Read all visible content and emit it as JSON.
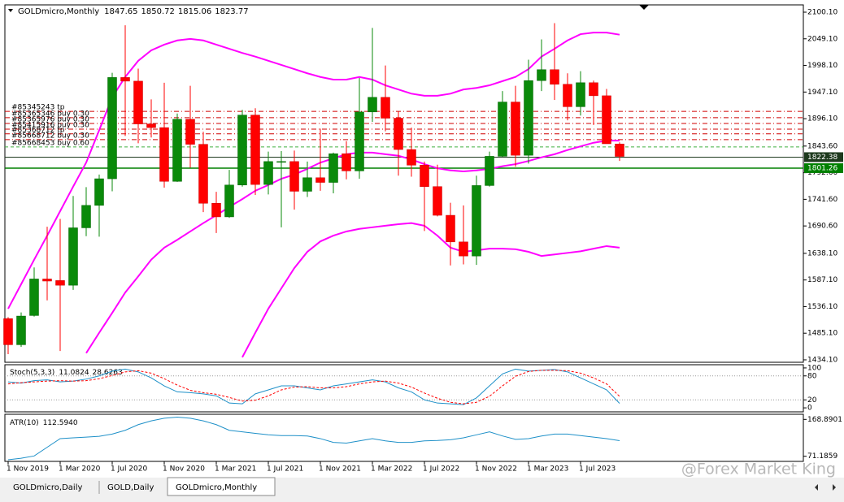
{
  "chart_data": [
    {
      "type": "candlestick",
      "symbol": "GOLDmicro,Monthly",
      "ohlc": [
        1847.65,
        1850.72,
        1815.06,
        1823.77
      ],
      "categories": [
        "1 Nov 2019",
        null,
        null,
        null,
        "1 Mar 2020",
        null,
        null,
        null,
        "1 Jul 2020",
        null,
        null,
        null,
        "1 Nov 2020",
        null,
        null,
        null,
        "1 Mar 2021",
        null,
        null,
        null,
        "1 Jul 2021",
        null,
        null,
        null,
        "1 Nov 2021",
        null,
        null,
        null,
        "1 Mar 2022",
        null,
        null,
        null,
        "1 Jul 2022",
        null,
        null,
        null,
        "1 Nov 2022",
        null,
        null,
        null,
        "1 Mar 2023",
        null,
        null,
        null,
        "1 Jul 2023",
        null,
        null,
        null
      ],
      "open": [
        1513,
        1463,
        1519,
        1589,
        1586,
        1577,
        1687,
        1730,
        1781,
        1975,
        1968,
        1886,
        1879,
        1776,
        1895,
        1847,
        1734,
        1708,
        1769,
        1903,
        1770,
        1814,
        1814,
        1757,
        1783,
        1774,
        1829,
        1796,
        1909,
        1937,
        1897,
        1837,
        1807,
        1766,
        1711,
        1660,
        1633,
        1768,
        1824,
        1928,
        1826,
        1969,
        1990,
        1962,
        1919,
        1965,
        1940,
        1847.65
      ],
      "high": [
        1516,
        1525,
        1611,
        1689,
        1704,
        1748,
        1765,
        1789,
        1984,
        2075,
        1992,
        1933,
        1965,
        1906,
        1959,
        1871,
        1756,
        1798,
        1913,
        1916,
        1833,
        1834,
        1835,
        1814,
        1877,
        1831,
        1853,
        1974,
        2070,
        1998,
        1910,
        1879,
        1814,
        1808,
        1735,
        1730,
        1787,
        1833,
        1949,
        1959,
        2009,
        2048,
        2079,
        1983,
        1987,
        1969,
        1953,
        1850.72
      ],
      "low": [
        1445,
        1459,
        1517,
        1548,
        1451,
        1568,
        1671,
        1670,
        1757,
        1863,
        1849,
        1860,
        1764,
        1775,
        1802,
        1717,
        1677,
        1706,
        1766,
        1750,
        1751,
        1688,
        1722,
        1746,
        1758,
        1753,
        1780,
        1781,
        1890,
        1872,
        1787,
        1785,
        1681,
        1709,
        1615,
        1617,
        1616,
        1766,
        1823,
        1804,
        1810,
        1949,
        1932,
        1893,
        1902,
        1884,
        1848,
        1815.06
      ],
      "close": [
        1463,
        1518,
        1589,
        1585,
        1577,
        1687,
        1730,
        1781,
        1975,
        1968,
        1886,
        1879,
        1776,
        1895,
        1847,
        1734,
        1708,
        1769,
        1903,
        1770,
        1814,
        1814,
        1757,
        1783,
        1774,
        1829,
        1796,
        1909,
        1937,
        1897,
        1837,
        1807,
        1766,
        1711,
        1660,
        1633,
        1768,
        1824,
        1928,
        1826,
        1969,
        1990,
        1962,
        1919,
        1965,
        1940,
        1848,
        1823.77
      ],
      "up_color": "#0a8a0a",
      "down_color": "#ff0000",
      "bands": {
        "color": "#ff00ff",
        "upper": [
          1532,
          1579,
          1626,
          1672,
          1719,
          1766,
          1812,
          1874,
          1937,
          1976,
          2007,
          2027,
          2038,
          2046,
          2049,
          2046,
          2038,
          2030,
          2022,
          2015,
          2007,
          1999,
          1991,
          1983,
          1976,
          1971,
          1971,
          1976,
          1971,
          1960,
          1952,
          1944,
          1940,
          1940,
          1944,
          1952,
          1955,
          1960,
          1968,
          1976,
          1991,
          2015,
          2030,
          2046,
          2058,
          2061,
          2061,
          2057
        ],
        "middle": [
          null,
          null,
          null,
          null,
          null,
          null,
          1447,
          1486,
          1524,
          1563,
          1594,
          1626,
          1649,
          1664,
          1680,
          1696,
          1711,
          1727,
          1742,
          1758,
          1769,
          1781,
          1789,
          1800,
          1812,
          1820,
          1828,
          1831,
          1831,
          1828,
          1825,
          1818,
          1809,
          1801,
          1797,
          1795,
          1797,
          1800,
          1805,
          1809,
          1815,
          1822,
          1828,
          1836,
          1843,
          1850,
          1854,
          1854
        ],
        "lower": [
          null,
          null,
          null,
          null,
          null,
          null,
          null,
          null,
          null,
          null,
          null,
          null,
          null,
          null,
          null,
          null,
          null,
          null,
          1439,
          1486,
          1532,
          1571,
          1610,
          1641,
          1661,
          1672,
          1680,
          1685,
          1688,
          1691,
          1694,
          1696,
          1691,
          1672,
          1649,
          1641,
          1644,
          1647,
          1647,
          1646,
          1641,
          1633,
          1636,
          1639,
          1642,
          1647,
          1652,
          1649
        ]
      },
      "orders": [
        {
          "label": "#85345243 tp",
          "price": 1910,
          "color": "#d00000"
        },
        {
          "label": "#85365346 buy 0.30",
          "price": 1898,
          "color": "#d00000"
        },
        {
          "label": "#85365976 buy 0.30",
          "price": 1887,
          "color": "#d00000"
        },
        {
          "label": "#85415916 buy 0.30",
          "price": 1876,
          "color": "#d00000"
        },
        {
          "label": "#85368712 tp",
          "price": 1867,
          "color": "#d00000"
        },
        {
          "label": "#85668712 buy 0.30",
          "price": 1856,
          "color": "#d00000"
        },
        {
          "label": "#85668453 buy 0.60",
          "price": 1842,
          "color": "#40b040"
        }
      ],
      "price_lines": [
        {
          "value": 1822.38,
          "color": "#1e3a1e"
        },
        {
          "value": 1801.26,
          "color": "#008000"
        }
      ],
      "ylim": [
        1429.4,
        2114.1
      ],
      "yticks": [
        {
          "value": 2100.1,
          "label": "2100.10"
        },
        {
          "value": 2049.1,
          "label": "2049.10"
        },
        {
          "value": 1998.1,
          "label": "1998.10"
        },
        {
          "value": 1947.1,
          "label": "1947.10"
        },
        {
          "value": 1896.1,
          "label": "1896.10"
        },
        {
          "value": 1843.6,
          "label": "1843.60"
        },
        {
          "value": 1792.6,
          "label": "1792.60"
        },
        {
          "value": 1741.6,
          "label": "1741.60"
        },
        {
          "value": 1690.6,
          "label": "1690.60"
        },
        {
          "value": 1638.1,
          "label": "1638.10"
        },
        {
          "value": 1587.1,
          "label": "1587.10"
        },
        {
          "value": 1536.1,
          "label": "1536.10"
        },
        {
          "value": 1485.1,
          "label": "1485.10"
        },
        {
          "value": 1434.1,
          "label": "1434.10"
        }
      ]
    },
    {
      "type": "line",
      "title": "Stoch(5,3,3)",
      "series": [
        {
          "color": "#1e90c8",
          "values": [
            65,
            62,
            68,
            70,
            65,
            67,
            72,
            80,
            92,
            97,
            90,
            75,
            55,
            40,
            38,
            35,
            30,
            12,
            10,
            35,
            45,
            55,
            55,
            50,
            45,
            55,
            60,
            65,
            70,
            65,
            50,
            40,
            20,
            12,
            10,
            8,
            25,
            55,
            85,
            97,
            92,
            94,
            96,
            90,
            75,
            60,
            45,
            11.0824
          ]
        },
        {
          "color": "#ff0000",
          "dashed": true,
          "values": [
            60,
            63,
            65,
            67,
            68,
            67,
            68,
            73,
            81,
            90,
            93,
            87,
            73,
            57,
            44,
            38,
            34,
            26,
            17,
            19,
            30,
            45,
            52,
            53,
            50,
            50,
            53,
            60,
            65,
            67,
            62,
            52,
            37,
            24,
            14,
            10,
            14,
            29,
            55,
            79,
            91,
            94,
            94,
            93,
            87,
            75,
            60,
            28.6263
          ]
        }
      ],
      "levels": [
        80,
        20
      ],
      "ylim": [
        -10,
        108
      ],
      "yticks": [
        100,
        80,
        20,
        0
      ]
    },
    {
      "type": "line",
      "title": "ATR(10)",
      "series": [
        {
          "color": "#1e90c8",
          "values": [
            62,
            66,
            72,
            95,
            118,
            120,
            122,
            124,
            130,
            140,
            155,
            165,
            172,
            175,
            172,
            165,
            155,
            140,
            136,
            132,
            128,
            126,
            126,
            125,
            118,
            108,
            106,
            112,
            118,
            112,
            108,
            108,
            112,
            113,
            115,
            120,
            128,
            136,
            125,
            116,
            118,
            125,
            130,
            130,
            126,
            122,
            118,
            112.594
          ],
          "value_labels": [
            null,
            null,
            null,
            null,
            null,
            null,
            null,
            null,
            null,
            null,
            null,
            null,
            null,
            null,
            null,
            null,
            null,
            null,
            null,
            null,
            null,
            null,
            null,
            null,
            null,
            null,
            null,
            null,
            null,
            null,
            null,
            null,
            null,
            null,
            null,
            null,
            null,
            null,
            null,
            null,
            null,
            null,
            null,
            null,
            null,
            null,
            null,
            "112.5940"
          ]
        }
      ],
      "ylim": [
        57.6,
        182.5
      ],
      "yticks": [
        168.8901,
        71.1859
      ]
    }
  ],
  "tabs": [
    "GOLDmicro,Daily",
    "GOLD,Daily",
    "GOLDmicro,Monthly"
  ],
  "watermark": "@Forex Market King"
}
